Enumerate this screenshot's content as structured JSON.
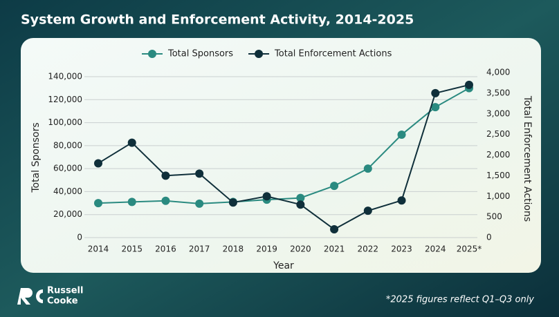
{
  "chart_data": {
    "type": "line",
    "title": "System Growth and Enforcement Activity, 2014-2025",
    "xlabel": "Year",
    "ylabel": "Total Sponsors",
    "y2label": "Total Enforcement Actions",
    "categories": [
      "2014",
      "2015",
      "2016",
      "2017",
      "2018",
      "2019",
      "2020",
      "2021",
      "2022",
      "2023",
      "2024",
      "2025*"
    ],
    "series": [
      {
        "name": "Total Sponsors",
        "color": "#2a8a80",
        "values": [
          30000,
          31000,
          32000,
          29500,
          31000,
          33000,
          34500,
          45000,
          60000,
          89500,
          113500,
          130000
        ]
      },
      {
        "name": "Total Enforcement Actions",
        "color": "#0f2f3a",
        "axis": "y2",
        "values": [
          1800,
          2300,
          1500,
          1550,
          850,
          1000,
          800,
          200,
          650,
          900,
          3500,
          3700
        ]
      }
    ],
    "ylim": [
      0,
      140000
    ],
    "yticks": [
      0,
      {
        "value": 20000,
        "label": "20,000"
      },
      {
        "value": 40000,
        "label": "40,000"
      },
      {
        "value": 60000,
        "label": "60,000"
      },
      {
        "value": 80000,
        "label": "80,000"
      },
      {
        "value": 100000,
        "label": "100,000"
      },
      {
        "value": 120000,
        "label": "120,000"
      },
      {
        "value": 140000,
        "label": "140,000"
      }
    ],
    "y2lim": [
      0,
      4000
    ],
    "y2ticks": [
      0,
      500,
      {
        "value": 1000,
        "label": "1,000"
      },
      {
        "value": 1500,
        "label": "1,500"
      },
      {
        "value": 2000,
        "label": "2,000"
      },
      {
        "value": 2500,
        "label": "2,500"
      },
      {
        "value": 3000,
        "label": "3,000"
      },
      {
        "value": 3500,
        "label": "3,500"
      },
      {
        "value": 4000,
        "label": "4,000"
      }
    ],
    "grid": true,
    "legend": "top",
    "footnote": "*2025 figures reflect Q1–Q3 only"
  },
  "branding": {
    "line1": "Russell",
    "line2": "Cooke"
  }
}
